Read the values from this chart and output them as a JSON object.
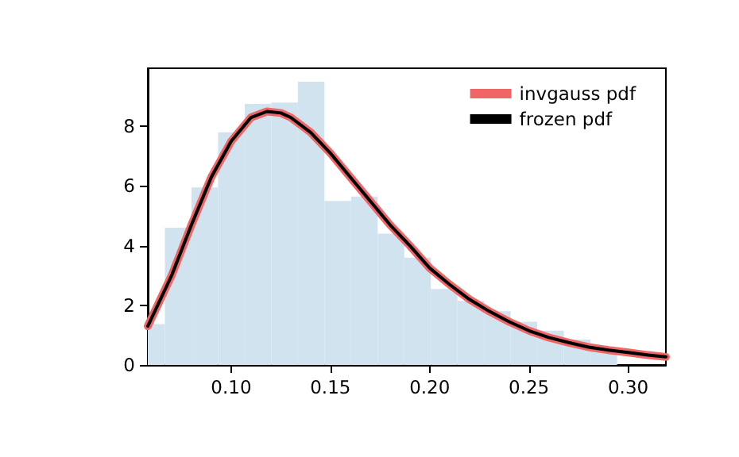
{
  "chart_data": {
    "type": "histogram",
    "color": "#d2e3f0",
    "bins": [
      0.058,
      0.0666,
      0.08,
      0.0934,
      0.1068,
      0.1202,
      0.1336,
      0.147,
      0.1604,
      0.1738,
      0.1872,
      0.2006,
      0.214,
      0.2274,
      0.2408,
      0.2542,
      0.2676,
      0.281,
      0.2944
    ],
    "values": [
      1.37,
      4.6,
      5.95,
      7.8,
      8.75,
      8.8,
      9.5,
      5.5,
      5.65,
      4.4,
      3.6,
      2.55,
      2.15,
      1.8,
      1.45,
      1.15,
      0.85,
      0.55
    ],
    "series": [
      {
        "type": "line",
        "name": "invgauss pdf",
        "color": "#f06666",
        "x": [
          0.058,
          0.07,
          0.08,
          0.09,
          0.1,
          0.11,
          0.118,
          0.125,
          0.13,
          0.14,
          0.15,
          0.16,
          0.17,
          0.18,
          0.19,
          0.2,
          0.21,
          0.22,
          0.23,
          0.24,
          0.25,
          0.26,
          0.27,
          0.28,
          0.29,
          0.3,
          0.31,
          0.319
        ],
        "values": [
          1.3,
          3.0,
          4.7,
          6.3,
          7.5,
          8.3,
          8.5,
          8.45,
          8.3,
          7.8,
          7.1,
          6.3,
          5.5,
          4.7,
          4.0,
          3.25,
          2.7,
          2.2,
          1.8,
          1.45,
          1.15,
          0.92,
          0.75,
          0.6,
          0.5,
          0.42,
          0.33,
          0.27
        ]
      },
      {
        "type": "line",
        "name": "frozen pdf",
        "color": "#000000",
        "x": [
          0.058,
          0.07,
          0.08,
          0.09,
          0.1,
          0.11,
          0.118,
          0.125,
          0.13,
          0.14,
          0.15,
          0.16,
          0.17,
          0.18,
          0.19,
          0.2,
          0.21,
          0.22,
          0.23,
          0.24,
          0.25,
          0.26,
          0.27,
          0.28,
          0.29,
          0.3,
          0.31,
          0.319
        ],
        "values": [
          1.3,
          3.0,
          4.7,
          6.3,
          7.5,
          8.3,
          8.5,
          8.45,
          8.3,
          7.8,
          7.1,
          6.3,
          5.5,
          4.7,
          4.0,
          3.25,
          2.7,
          2.2,
          1.8,
          1.45,
          1.15,
          0.92,
          0.75,
          0.6,
          0.5,
          0.42,
          0.33,
          0.27
        ]
      }
    ],
    "xlim": [
      0.058,
      0.319
    ],
    "xticks": [
      {
        "value": 0.1,
        "label": "0.10"
      },
      {
        "value": 0.15,
        "label": "0.15"
      },
      {
        "value": 0.2,
        "label": "0.20"
      },
      {
        "value": 0.25,
        "label": "0.25"
      },
      {
        "value": 0.3,
        "label": "0.30"
      }
    ],
    "ylim": [
      0,
      9.95
    ],
    "yticks": [
      0,
      2,
      4,
      6,
      8
    ],
    "legend": "top right",
    "grid": false
  }
}
